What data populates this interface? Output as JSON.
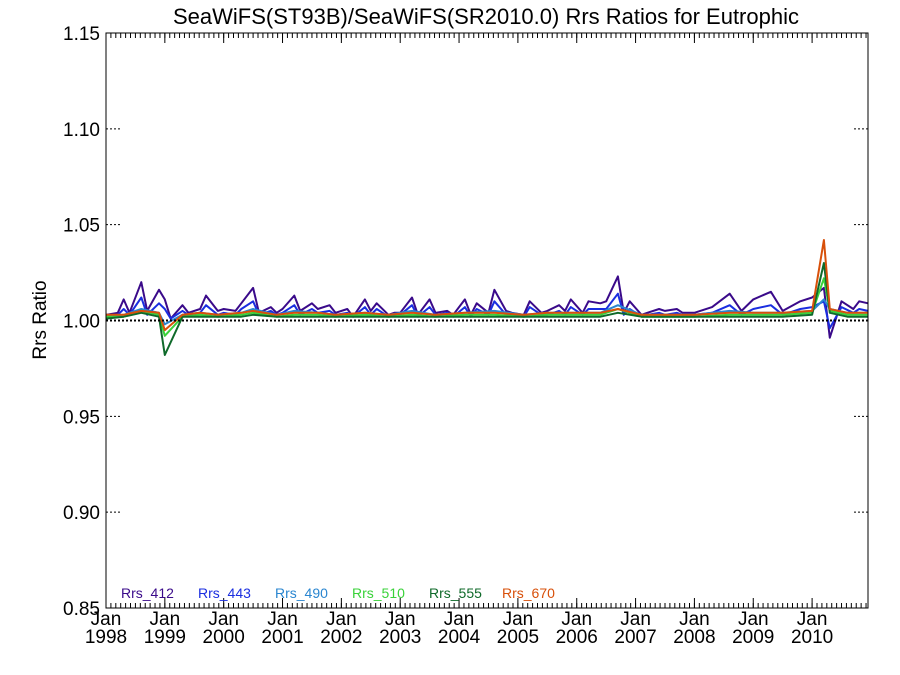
{
  "chart_data": {
    "type": "line",
    "title": "SeaWiFS(ST93B)/SeaWiFS(SR2010.0)  Rrs Ratios for Eutrophic",
    "ylabel": "Rrs Ratio",
    "xlabel": "",
    "xlim": [
      1998.0,
      2010.95
    ],
    "ylim": [
      0.85,
      1.15
    ],
    "y_ticks": [
      "0.85",
      "0.90",
      "0.95",
      "1.00",
      "1.05",
      "1.10",
      "1.15"
    ],
    "x_ticks": [
      {
        "top": "Jan",
        "bottom": "1998",
        "x": 1998.0
      },
      {
        "top": "Jan",
        "bottom": "1999",
        "x": 1999.0
      },
      {
        "top": "Jan",
        "bottom": "2000",
        "x": 2000.0
      },
      {
        "top": "Jan",
        "bottom": "2001",
        "x": 2001.0
      },
      {
        "top": "Jan",
        "bottom": "2002",
        "x": 2002.0
      },
      {
        "top": "Jan",
        "bottom": "2003",
        "x": 2003.0
      },
      {
        "top": "Jan",
        "bottom": "2004",
        "x": 2004.0
      },
      {
        "top": "Jan",
        "bottom": "2005",
        "x": 2005.0
      },
      {
        "top": "Jan",
        "bottom": "2006",
        "x": 2006.0
      },
      {
        "top": "Jan",
        "bottom": "2007",
        "x": 2007.0
      },
      {
        "top": "Jan",
        "bottom": "2008",
        "x": 2008.0
      },
      {
        "top": "Jan",
        "bottom": "2009",
        "x": 2009.0
      },
      {
        "top": "Jan",
        "bottom": "2010",
        "x": 2010.0
      }
    ],
    "reference_line": 1.0,
    "legend_placement": "bottom-left",
    "series": [
      {
        "name": "Rrs_412",
        "color": "#3a0a8a",
        "x": [
          1998.0,
          1998.2,
          1998.3,
          1998.4,
          1998.6,
          1998.7,
          1998.9,
          1999.0,
          1999.1,
          1999.3,
          1999.4,
          1999.6,
          1999.7,
          1999.9,
          2000.0,
          2000.2,
          2000.3,
          2000.5,
          2000.6,
          2000.8,
          2000.9,
          2001.0,
          2001.2,
          2001.3,
          2001.5,
          2001.6,
          2001.8,
          2001.9,
          2002.1,
          2002.2,
          2002.4,
          2002.5,
          2002.6,
          2002.8,
          2002.9,
          2003.0,
          2003.2,
          2003.3,
          2003.5,
          2003.6,
          2003.8,
          2003.9,
          2004.1,
          2004.2,
          2004.3,
          2004.5,
          2004.6,
          2004.8,
          2004.9,
          2005.1,
          2005.2,
          2005.4,
          2005.5,
          2005.7,
          2005.8,
          2005.9,
          2006.1,
          2006.2,
          2006.4,
          2006.5,
          2006.7,
          2006.8,
          2006.9,
          2007.1,
          2007.2,
          2007.4,
          2007.5,
          2007.7,
          2007.8,
          2008.0,
          2008.3,
          2008.6,
          2008.8,
          2009.0,
          2009.3,
          2009.5,
          2009.8,
          2010.0,
          2010.2,
          2010.3,
          2010.5,
          2010.7,
          2010.8,
          2010.95
        ],
        "values": [
          1.003,
          1.004,
          1.011,
          1.004,
          1.02,
          1.005,
          1.016,
          1.011,
          1.001,
          1.008,
          1.004,
          1.006,
          1.013,
          1.005,
          1.006,
          1.005,
          1.009,
          1.017,
          1.004,
          1.007,
          1.004,
          1.006,
          1.013,
          1.005,
          1.009,
          1.006,
          1.008,
          1.004,
          1.006,
          1.002,
          1.011,
          1.005,
          1.009,
          1.003,
          1.004,
          1.004,
          1.012,
          1.003,
          1.011,
          1.004,
          1.005,
          1.003,
          1.011,
          1.003,
          1.009,
          1.004,
          1.016,
          1.005,
          1.004,
          1.003,
          1.01,
          1.004,
          1.005,
          1.008,
          1.005,
          1.011,
          1.004,
          1.01,
          1.009,
          1.01,
          1.023,
          1.004,
          1.01,
          1.003,
          1.004,
          1.006,
          1.005,
          1.006,
          1.004,
          1.004,
          1.007,
          1.014,
          1.005,
          1.011,
          1.015,
          1.005,
          1.01,
          1.012,
          1.017,
          0.991,
          1.01,
          1.006,
          1.01,
          1.009
        ]
      },
      {
        "name": "Rrs_443",
        "color": "#1a2ee0",
        "x": [
          1998.0,
          1998.2,
          1998.3,
          1998.4,
          1998.6,
          1998.7,
          1998.9,
          1999.0,
          1999.1,
          1999.3,
          1999.4,
          1999.6,
          1999.7,
          1999.9,
          2000.0,
          2000.2,
          2000.3,
          2000.5,
          2000.6,
          2000.8,
          2000.9,
          2001.0,
          2001.2,
          2001.3,
          2001.5,
          2001.6,
          2001.8,
          2001.9,
          2002.1,
          2002.2,
          2002.4,
          2002.5,
          2002.6,
          2002.8,
          2002.9,
          2003.0,
          2003.2,
          2003.3,
          2003.5,
          2003.6,
          2003.8,
          2003.9,
          2004.1,
          2004.2,
          2004.3,
          2004.5,
          2004.6,
          2004.8,
          2004.9,
          2005.1,
          2005.2,
          2005.4,
          2005.5,
          2005.7,
          2005.8,
          2005.9,
          2006.1,
          2006.2,
          2006.4,
          2006.5,
          2006.7,
          2006.8,
          2006.9,
          2007.1,
          2007.2,
          2007.4,
          2007.5,
          2007.7,
          2007.8,
          2008.0,
          2008.3,
          2008.6,
          2008.8,
          2009.0,
          2009.3,
          2009.5,
          2009.8,
          2010.0,
          2010.2,
          2010.3,
          2010.5,
          2010.7,
          2010.8,
          2010.95
        ],
        "values": [
          1.002,
          1.003,
          1.006,
          1.003,
          1.012,
          1.003,
          1.009,
          1.006,
          1.001,
          1.005,
          1.003,
          1.004,
          1.008,
          1.003,
          1.004,
          1.003,
          1.006,
          1.01,
          1.003,
          1.005,
          1.003,
          1.004,
          1.008,
          1.003,
          1.006,
          1.004,
          1.005,
          1.003,
          1.004,
          1.002,
          1.007,
          1.003,
          1.006,
          1.002,
          1.003,
          1.003,
          1.008,
          1.002,
          1.007,
          1.003,
          1.004,
          1.002,
          1.007,
          1.002,
          1.006,
          1.003,
          1.01,
          1.003,
          1.003,
          1.002,
          1.007,
          1.003,
          1.003,
          1.005,
          1.003,
          1.007,
          1.003,
          1.006,
          1.006,
          1.006,
          1.014,
          1.003,
          1.006,
          1.002,
          1.003,
          1.004,
          1.003,
          1.004,
          1.003,
          1.003,
          1.004,
          1.008,
          1.003,
          1.006,
          1.008,
          1.003,
          1.006,
          1.007,
          1.01,
          0.996,
          1.007,
          1.004,
          1.006,
          1.005
        ]
      },
      {
        "name": "Rrs_490",
        "color": "#2a86d0",
        "x": [
          1998.0,
          1998.3,
          1998.6,
          1998.9,
          1999.0,
          1999.3,
          1999.6,
          1999.9,
          2000.3,
          2000.5,
          2000.9,
          2001.2,
          2001.6,
          2001.9,
          2002.4,
          2002.8,
          2003.2,
          2003.6,
          2004.1,
          2004.6,
          2005.1,
          2005.5,
          2005.9,
          2006.4,
          2006.7,
          2007.1,
          2007.5,
          2008.0,
          2008.6,
          2009.0,
          2009.5,
          2010.0,
          2010.2,
          2010.3,
          2010.6,
          2010.95
        ],
        "values": [
          1.002,
          1.003,
          1.006,
          1.004,
          0.998,
          1.003,
          1.004,
          1.003,
          1.004,
          1.006,
          1.003,
          1.005,
          1.004,
          1.003,
          1.004,
          1.003,
          1.005,
          1.003,
          1.004,
          1.005,
          1.003,
          1.004,
          1.004,
          1.004,
          1.008,
          1.003,
          1.003,
          1.003,
          1.005,
          1.004,
          1.004,
          1.005,
          1.011,
          1.006,
          1.004,
          1.004
        ]
      },
      {
        "name": "Rrs_510",
        "color": "#3ad23a",
        "x": [
          1998.0,
          1998.3,
          1998.6,
          1998.9,
          1999.0,
          1999.3,
          1999.6,
          1999.9,
          2000.3,
          2000.5,
          2000.9,
          2001.2,
          2001.6,
          2001.9,
          2002.4,
          2002.8,
          2003.2,
          2003.6,
          2004.1,
          2004.6,
          2005.1,
          2005.5,
          2005.9,
          2006.4,
          2006.7,
          2007.1,
          2007.5,
          2008.0,
          2008.6,
          2009.0,
          2009.5,
          2010.0,
          2010.2,
          2010.3,
          2010.6,
          2010.95
        ],
        "values": [
          1.002,
          1.002,
          1.005,
          1.003,
          0.992,
          1.002,
          1.003,
          1.002,
          1.003,
          1.004,
          1.002,
          1.003,
          1.003,
          1.002,
          1.003,
          1.002,
          1.003,
          1.002,
          1.003,
          1.003,
          1.002,
          1.003,
          1.003,
          1.003,
          1.006,
          1.002,
          1.002,
          1.002,
          1.003,
          1.003,
          1.003,
          1.004,
          1.022,
          1.005,
          1.003,
          1.003
        ]
      },
      {
        "name": "Rrs_555",
        "color": "#0f6a2a",
        "x": [
          1998.0,
          1998.3,
          1998.6,
          1998.9,
          1999.0,
          1999.3,
          1999.6,
          1999.9,
          2000.3,
          2000.5,
          2000.9,
          2001.2,
          2001.6,
          2001.9,
          2002.4,
          2002.8,
          2003.2,
          2003.6,
          2004.1,
          2004.6,
          2005.1,
          2005.5,
          2005.9,
          2006.4,
          2006.7,
          2007.1,
          2007.5,
          2008.0,
          2008.6,
          2009.0,
          2009.5,
          2010.0,
          2010.2,
          2010.3,
          2010.6,
          2010.95
        ],
        "values": [
          1.001,
          1.002,
          1.004,
          1.002,
          0.982,
          1.002,
          1.002,
          1.002,
          1.002,
          1.003,
          1.002,
          1.002,
          1.002,
          1.002,
          1.002,
          1.002,
          1.002,
          1.002,
          1.002,
          1.002,
          1.002,
          1.002,
          1.002,
          1.002,
          1.004,
          1.002,
          1.002,
          1.002,
          1.002,
          1.002,
          1.002,
          1.003,
          1.03,
          1.004,
          1.002,
          1.002
        ]
      },
      {
        "name": "Rrs_670",
        "color": "#d8500a",
        "x": [
          1998.0,
          1998.3,
          1998.6,
          1998.9,
          1999.0,
          1999.3,
          1999.6,
          1999.9,
          2000.3,
          2000.5,
          2000.9,
          2001.2,
          2001.6,
          2001.9,
          2002.4,
          2002.8,
          2003.2,
          2003.6,
          2004.1,
          2004.6,
          2005.1,
          2005.5,
          2005.9,
          2006.4,
          2006.7,
          2007.1,
          2007.5,
          2008.0,
          2008.6,
          2009.0,
          2009.5,
          2010.0,
          2010.2,
          2010.3,
          2010.6,
          2010.95
        ],
        "values": [
          1.003,
          1.003,
          1.005,
          1.004,
          0.995,
          1.003,
          1.004,
          1.003,
          1.004,
          1.005,
          1.003,
          1.004,
          1.004,
          1.003,
          1.004,
          1.003,
          1.004,
          1.003,
          1.004,
          1.004,
          1.003,
          1.004,
          1.004,
          1.004,
          1.006,
          1.003,
          1.003,
          1.003,
          1.004,
          1.004,
          1.004,
          1.005,
          1.042,
          1.006,
          1.004,
          1.004
        ]
      }
    ]
  }
}
